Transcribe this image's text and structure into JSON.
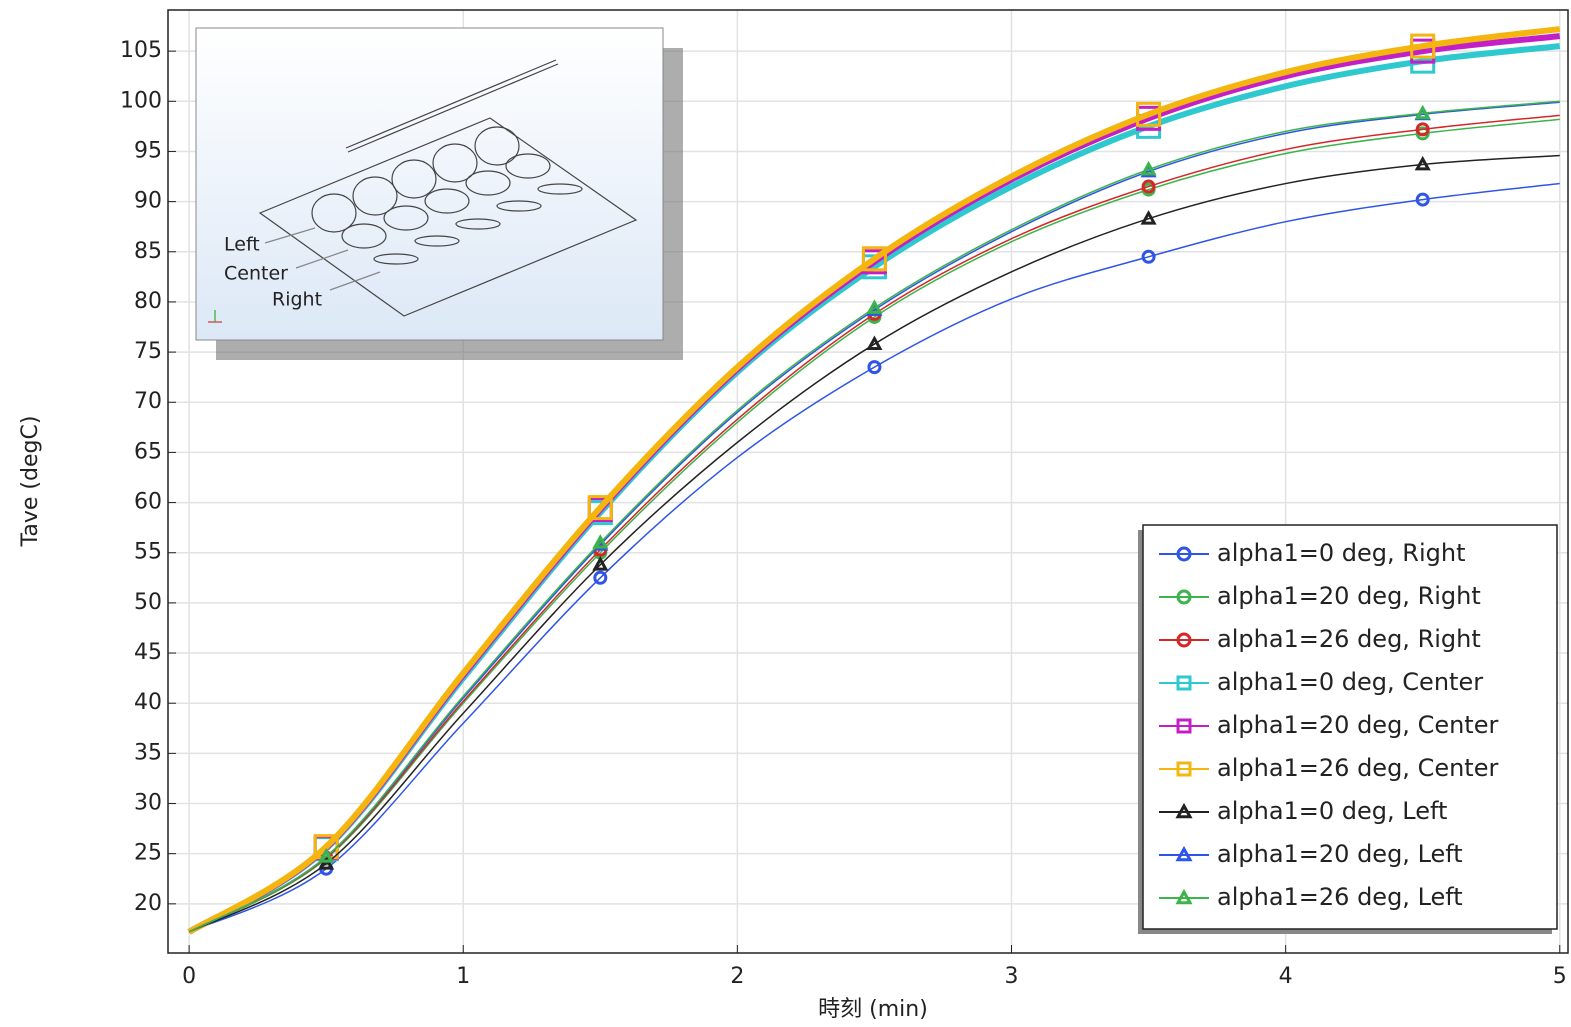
{
  "chart_data": {
    "type": "line",
    "xlabel": "時刻 (min)",
    "ylabel": "Tave (degC)",
    "x": [
      0,
      0.5,
      1,
      1.5,
      2,
      2.5,
      3,
      3.5,
      4,
      4.5,
      5
    ],
    "xlim": [
      -0.077,
      5.03
    ],
    "ylim": [
      15.1,
      109.1
    ],
    "xticks": [
      0,
      1,
      2,
      3,
      4,
      5
    ],
    "yticks": [
      20,
      25,
      30,
      35,
      40,
      45,
      50,
      55,
      60,
      65,
      70,
      75,
      80,
      85,
      90,
      95,
      100,
      105
    ],
    "grid": true,
    "legend": "lower right",
    "inset_labels": [
      "Left",
      "Center",
      "Right"
    ],
    "series": [
      {
        "name": "alpha1=0 deg, Right",
        "color": "#2f55e8",
        "marker": "circle",
        "line_width": 1.5,
        "values": [
          17.2,
          23.5,
          38,
          52.5,
          64.5,
          73.5,
          80.3,
          84.5,
          88,
          90.2,
          91.8
        ]
      },
      {
        "name": "alpha1=20 deg, Right",
        "color": "#3cb44b",
        "marker": "circle",
        "line_width": 1.5,
        "values": [
          17.2,
          24.5,
          40,
          55,
          68,
          78.5,
          86,
          91.2,
          94.8,
          96.8,
          98.2
        ]
      },
      {
        "name": "alpha1=26 deg, Right",
        "color": "#d62728",
        "marker": "circle",
        "line_width": 1.5,
        "values": [
          17.2,
          24.6,
          40.2,
          55.3,
          68.3,
          78.8,
          86.3,
          91.5,
          95.2,
          97.2,
          98.6
        ]
      },
      {
        "name": "alpha1=0 deg, Center",
        "color": "#2ec9cf",
        "marker": "square",
        "line_width": 6,
        "values": [
          17.2,
          25.5,
          42.5,
          59,
          73,
          83.5,
          91.5,
          97.5,
          101.5,
          104,
          105.5
        ]
      },
      {
        "name": "alpha1=20 deg, Center",
        "color": "#c21fc6",
        "marker": "square",
        "line_width": 6,
        "values": [
          17.2,
          25.6,
          42.8,
          59.3,
          73.3,
          84,
          92.2,
          98.3,
          102.5,
          105,
          106.5
        ]
      },
      {
        "name": "alpha1=26 deg, Center",
        "color": "#f5b50f",
        "marker": "square",
        "line_width": 6,
        "values": [
          17.2,
          25.7,
          43,
          59.5,
          73.5,
          84.3,
          92.5,
          98.7,
          102.9,
          105.5,
          107.2
        ]
      },
      {
        "name": "alpha1=0 deg, Left",
        "color": "#222222",
        "marker": "triangle",
        "line_width": 1.5,
        "values": [
          17.2,
          24,
          39,
          53.8,
          66,
          75.8,
          83,
          88.3,
          91.8,
          93.7,
          94.6
        ]
      },
      {
        "name": "alpha1=20 deg, Left",
        "color": "#2f55e8",
        "marker": "triangle",
        "line_width": 1.5,
        "values": [
          17.2,
          24.7,
          40.5,
          55.8,
          69,
          79.2,
          87,
          93,
          96.8,
          98.7,
          99.9
        ]
      },
      {
        "name": "alpha1=26 deg, Left",
        "color": "#3cb44b",
        "marker": "triangle",
        "line_width": 1.5,
        "values": [
          17.2,
          24.7,
          40.7,
          56,
          69.2,
          79.4,
          87.2,
          93.2,
          97,
          98.8,
          100
        ]
      }
    ]
  }
}
